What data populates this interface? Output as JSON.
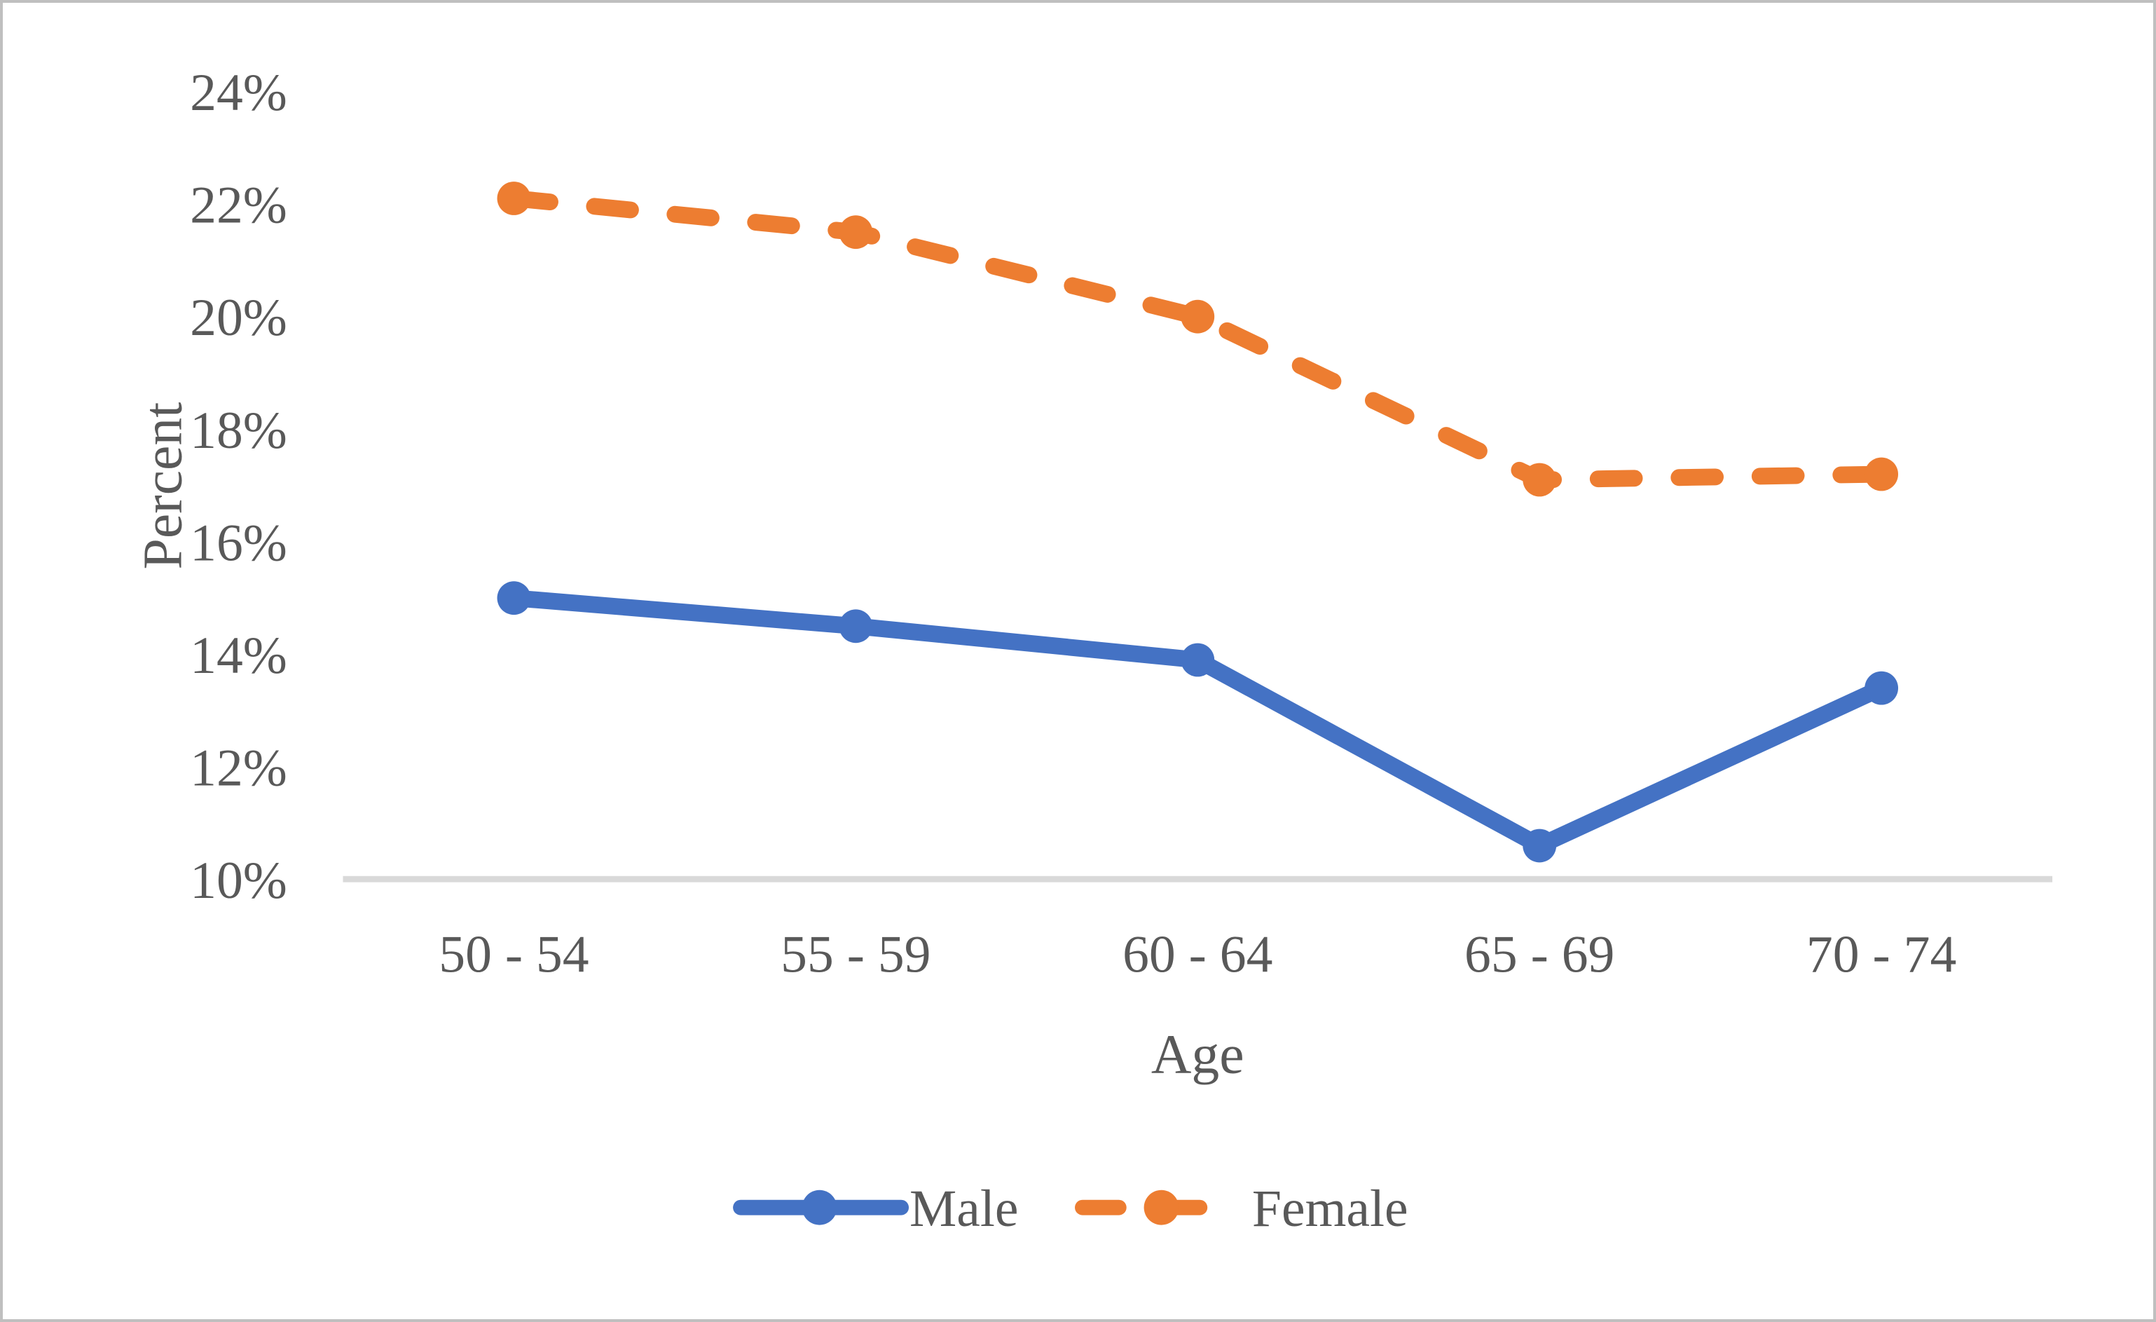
{
  "chart_data": {
    "type": "line",
    "title": "",
    "xlabel": "Age",
    "ylabel": "Percent",
    "categories": [
      "50 - 54",
      "55 - 59",
      "60 - 64",
      "65 - 69",
      "70 - 74"
    ],
    "series": [
      {
        "name": "Male",
        "values": [
          15.0,
          14.5,
          13.9,
          10.6,
          13.4
        ],
        "color": "#4472C4",
        "line_style": "solid",
        "marker": "circle"
      },
      {
        "name": "Female",
        "values": [
          22.1,
          21.5,
          20.0,
          17.1,
          17.2
        ],
        "color": "#ED7D31",
        "line_style": "long-dash",
        "marker": "circle"
      }
    ],
    "ylim": [
      10,
      24
    ],
    "ytick_step": 2,
    "ytick_labels": [
      "24%",
      "22%",
      "20%",
      "18%",
      "16%",
      "14%",
      "12%",
      "10%"
    ],
    "grid": false,
    "legend_position": "bottom",
    "axis_line_color": "#D9D9D9",
    "text_color": "#595959"
  }
}
